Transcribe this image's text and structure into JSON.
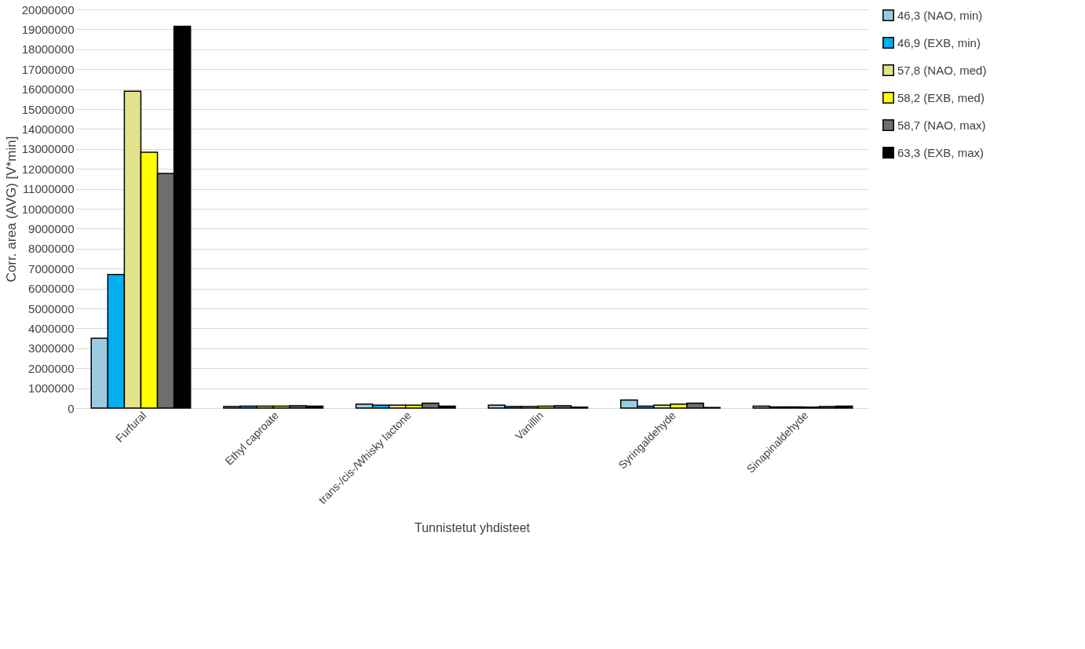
{
  "chart_data": {
    "type": "bar",
    "xlabel": "Tunnistetut yhdisteet",
    "ylabel": "Corr. area (AVG) [V*min]",
    "categories": [
      "Furfural",
      "Ethyl caproate",
      "trans-/cis-/Whisky lactone",
      "Vanillin",
      "Syringaldehyde",
      "Sinapinaldehyde"
    ],
    "series": [
      {
        "name": "46,3 (NAO, min)",
        "color": "#9ccbe0",
        "values": [
          3500000,
          80000,
          200000,
          150000,
          400000,
          100000
        ]
      },
      {
        "name": "46,9 (EXB, min)",
        "color": "#00b0f0",
        "values": [
          6700000,
          100000,
          150000,
          80000,
          100000,
          60000
        ]
      },
      {
        "name": "57,8 (NAO, med)",
        "color": "#e2e28a",
        "values": [
          15900000,
          100000,
          150000,
          80000,
          150000,
          60000
        ]
      },
      {
        "name": "58,2 (EXB, med)",
        "color": "#ffff00",
        "values": [
          12830000,
          100000,
          150000,
          100000,
          200000,
          50000
        ]
      },
      {
        "name": "58,7 (NAO, max)",
        "color": "#6e6e6e",
        "values": [
          11770000,
          120000,
          250000,
          120000,
          250000,
          80000
        ]
      },
      {
        "name": "63,3 (EXB, max)",
        "color": "#000000",
        "values": [
          19150000,
          100000,
          100000,
          50000,
          30000,
          100000
        ]
      }
    ],
    "ylim": [
      0,
      20000000
    ],
    "yticks": [
      0,
      1000000,
      2000000,
      3000000,
      4000000,
      5000000,
      6000000,
      7000000,
      8000000,
      9000000,
      10000000,
      11000000,
      12000000,
      13000000,
      14000000,
      15000000,
      16000000,
      17000000,
      18000000,
      19000000,
      20000000
    ],
    "grid": "y",
    "legend": "right"
  }
}
